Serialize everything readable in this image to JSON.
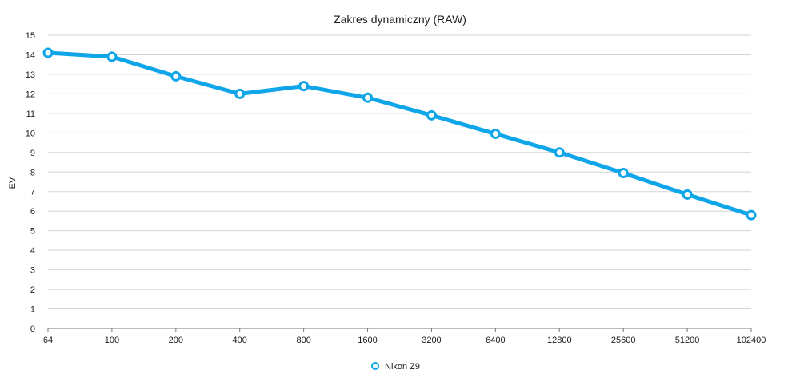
{
  "chart_data": {
    "type": "line",
    "title": "Zakres dynamiczny (RAW)",
    "xlabel": "",
    "ylabel": "EV",
    "categories": [
      "64",
      "100",
      "200",
      "400",
      "800",
      "1600",
      "3200",
      "6400",
      "12800",
      "25600",
      "51200",
      "102400"
    ],
    "y_ticks": [
      "0",
      "1",
      "2",
      "3",
      "4",
      "5",
      "6",
      "7",
      "8",
      "9",
      "10",
      "11",
      "12",
      "13",
      "14",
      "15"
    ],
    "ylim": [
      0,
      15
    ],
    "grid": true,
    "legend_position": "bottom",
    "series": [
      {
        "name": "Nikon Z9",
        "color": "#0ea5e9",
        "values": [
          14.1,
          13.9,
          12.9,
          12.0,
          12.4,
          11.8,
          10.9,
          9.95,
          9.0,
          7.95,
          6.85,
          5.8
        ]
      }
    ]
  }
}
